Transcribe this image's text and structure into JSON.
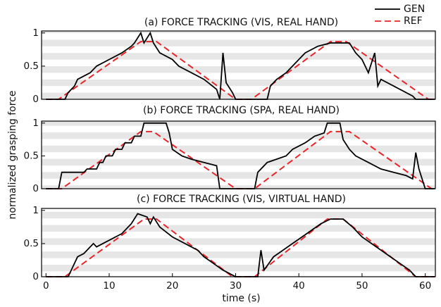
{
  "ylabel": "normalized grasping force",
  "chart_data": [
    {
      "type": "line",
      "title": "(a) FORCE TRACKING (VIS, REAL HAND)",
      "xlim": [
        -0.7,
        61.6
      ],
      "ylim": [
        0,
        1.03
      ],
      "yticks": [
        0,
        0.5,
        1
      ],
      "series": [
        {
          "name": "GEN",
          "color": "#000000",
          "x": [
            0,
            3,
            3.5,
            4.5,
            5,
            7,
            8,
            10,
            12,
            13.5,
            14,
            15,
            15.5,
            16.5,
            17,
            18,
            20,
            21,
            23,
            25,
            27,
            27.5,
            28,
            28.5,
            29.5,
            30,
            35,
            35.5,
            36.5,
            38,
            39,
            40,
            41,
            43,
            45,
            48,
            49,
            50,
            51,
            52,
            52.5,
            53,
            56,
            58,
            58.5,
            61.5
          ],
          "values": [
            0,
            0,
            0.1,
            0.2,
            0.3,
            0.4,
            0.5,
            0.6,
            0.7,
            0.8,
            0.85,
            1,
            0.85,
            1,
            0.85,
            0.7,
            0.6,
            0.5,
            0.4,
            0.3,
            0.15,
            0,
            0.7,
            0.25,
            0.1,
            0,
            0,
            0.2,
            0.3,
            0.4,
            0.5,
            0.6,
            0.7,
            0.8,
            0.85,
            0.85,
            0.7,
            0.6,
            0.4,
            0.7,
            0.2,
            0.3,
            0.15,
            0.05,
            0,
            0
          ]
        },
        {
          "name": "REF",
          "color": "#e8262a",
          "x": [
            0,
            2,
            15,
            17.5,
            30,
            32.5,
            45,
            47.5,
            60.5,
            61.5
          ],
          "values": [
            0,
            0,
            0.87,
            0.87,
            0,
            0,
            0.87,
            0.87,
            0,
            0
          ]
        }
      ]
    },
    {
      "type": "line",
      "title": "(b) FORCE TRACKING (SPA, REAL HAND)",
      "xlim": [
        -0.7,
        61.6
      ],
      "ylim": [
        0,
        1.03
      ],
      "yticks": [
        0,
        0.5,
        1
      ],
      "series": [
        {
          "color": "#000000",
          "x": [
            0,
            2,
            2.5,
            6,
            6.5,
            8,
            8.5,
            9,
            9.5,
            10.5,
            11,
            12,
            12.5,
            13.5,
            14,
            15,
            15.5,
            19,
            19.5,
            20,
            21.5,
            23,
            25,
            27,
            27.5,
            33,
            33.5,
            35,
            38,
            39,
            41,
            42.5,
            44,
            44.5,
            46.5,
            47,
            48,
            49,
            51,
            53,
            55,
            57,
            58,
            58.5,
            59,
            60,
            61.5
          ],
          "values": [
            0,
            0,
            0.25,
            0.25,
            0.3,
            0.3,
            0.4,
            0.4,
            0.5,
            0.5,
            0.6,
            0.6,
            0.7,
            0.7,
            0.8,
            0.8,
            1,
            1,
            0.85,
            0.6,
            0.5,
            0.45,
            0.4,
            0.35,
            0,
            0,
            0.25,
            0.4,
            0.5,
            0.6,
            0.7,
            0.8,
            0.85,
            1,
            1,
            0.75,
            0.6,
            0.5,
            0.4,
            0.3,
            0.25,
            0.2,
            0.15,
            0.55,
            0.3,
            0,
            0
          ]
        },
        {
          "color": "#e8262a",
          "x": [
            0,
            2.5,
            15,
            17,
            30,
            33,
            45,
            48,
            61,
            61.5
          ],
          "values": [
            0,
            0,
            0.87,
            0.87,
            0,
            0,
            0.87,
            0.87,
            0,
            0
          ]
        }
      ]
    },
    {
      "type": "line",
      "title": "(c) FORCE TRACKING (VIS, VIRTUAL HAND)",
      "xlabel": "time (s)",
      "xlim": [
        -0.7,
        61.6
      ],
      "ylim": [
        0,
        1.03
      ],
      "yticks": [
        0,
        0.5,
        1
      ],
      "xticks": [
        0,
        10,
        20,
        30,
        40,
        50,
        60
      ],
      "series": [
        {
          "color": "#000000",
          "x": [
            0,
            3.5,
            4,
            5,
            6,
            7.5,
            8,
            10,
            12,
            13.5,
            14.5,
            16,
            16.5,
            17,
            18,
            20,
            22,
            24,
            25,
            26.5,
            28,
            29,
            30,
            33.5,
            34,
            34.5,
            36,
            37.5,
            39,
            40.5,
            42,
            43.5,
            45,
            47,
            48.5,
            50,
            51.5,
            53,
            54.5,
            56,
            57.5,
            58.5,
            61.5
          ],
          "values": [
            0,
            0,
            0.1,
            0.3,
            0.35,
            0.5,
            0.45,
            0.55,
            0.65,
            0.8,
            0.95,
            0.9,
            0.8,
            0.9,
            0.75,
            0.6,
            0.5,
            0.4,
            0.3,
            0.2,
            0.1,
            0.05,
            0,
            0,
            0.4,
            0.1,
            0.3,
            0.4,
            0.5,
            0.6,
            0.7,
            0.8,
            0.87,
            0.87,
            0.75,
            0.6,
            0.5,
            0.4,
            0.3,
            0.2,
            0.1,
            0,
            0
          ]
        },
        {
          "color": "#e8262a",
          "x": [
            0,
            3,
            15.5,
            17.5,
            29.5,
            33,
            44.5,
            47,
            58.5,
            61.5
          ],
          "values": [
            0,
            0,
            0.87,
            0.87,
            0,
            0,
            0.87,
            0.87,
            0,
            0
          ]
        }
      ]
    }
  ]
}
